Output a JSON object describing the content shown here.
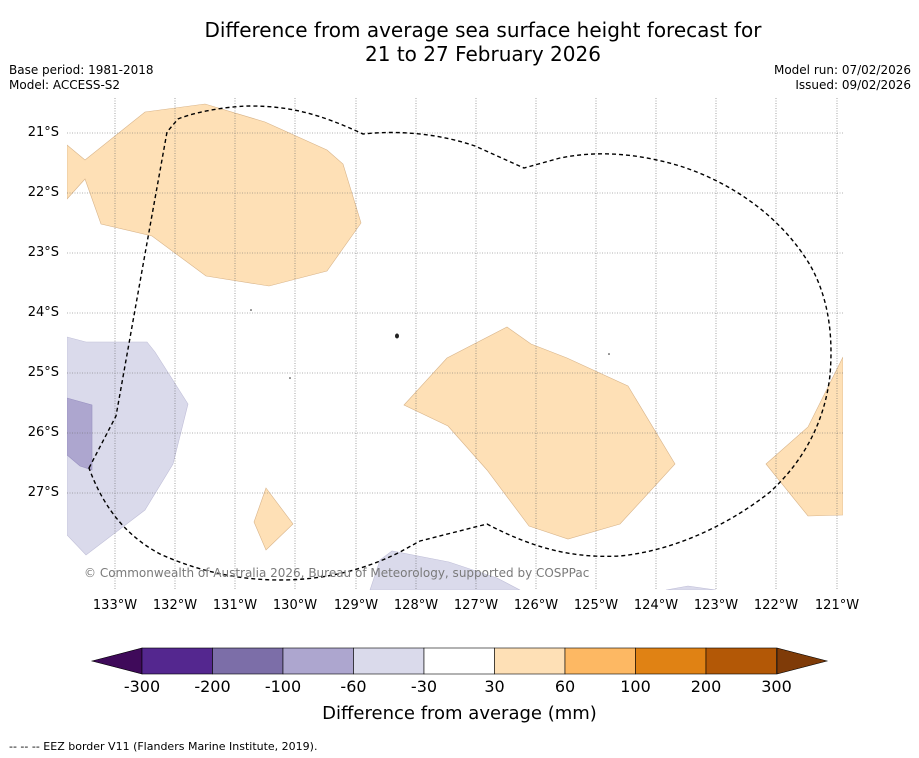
{
  "title_line1": "Difference from average sea surface height forecast for",
  "title_line2": "21 to 27 February 2026",
  "base_period": "Base period: 1981-2018",
  "model": "Model: ACCESS-S2",
  "model_run": "Model run: 07/02/2026",
  "issued": "Issued: 09/02/2026",
  "copyright": "© Commonwealth of Australia 2026, Bureau of Meteorology, supported by COSPPac",
  "lat_ticks": [
    "21°S",
    "22°S",
    "23°S",
    "24°S",
    "25°S",
    "26°S",
    "27°S"
  ],
  "lon_ticks": [
    "133°W",
    "132°W",
    "131°W",
    "130°W",
    "129°W",
    "128°W",
    "127°W",
    "126°W",
    "125°W",
    "124°W",
    "123°W",
    "122°W",
    "121°W"
  ],
  "colorbar": {
    "title": "Difference from average (mm)",
    "labels": [
      "-300",
      "-200",
      "-100",
      "-60",
      "-30",
      "30",
      "60",
      "100",
      "200",
      "300"
    ],
    "colors": [
      "#3f0a5a",
      "#54278f",
      "#7c6ea8",
      "#ada6cf",
      "#dadaeb",
      "#ffffff",
      "#fee0b6",
      "#fdb863",
      "#e08214",
      "#b35806",
      "#7f3b08"
    ]
  },
  "footer": "--  --  -- EEZ border V11 (Flanders Marine Institute, 2019)."
}
